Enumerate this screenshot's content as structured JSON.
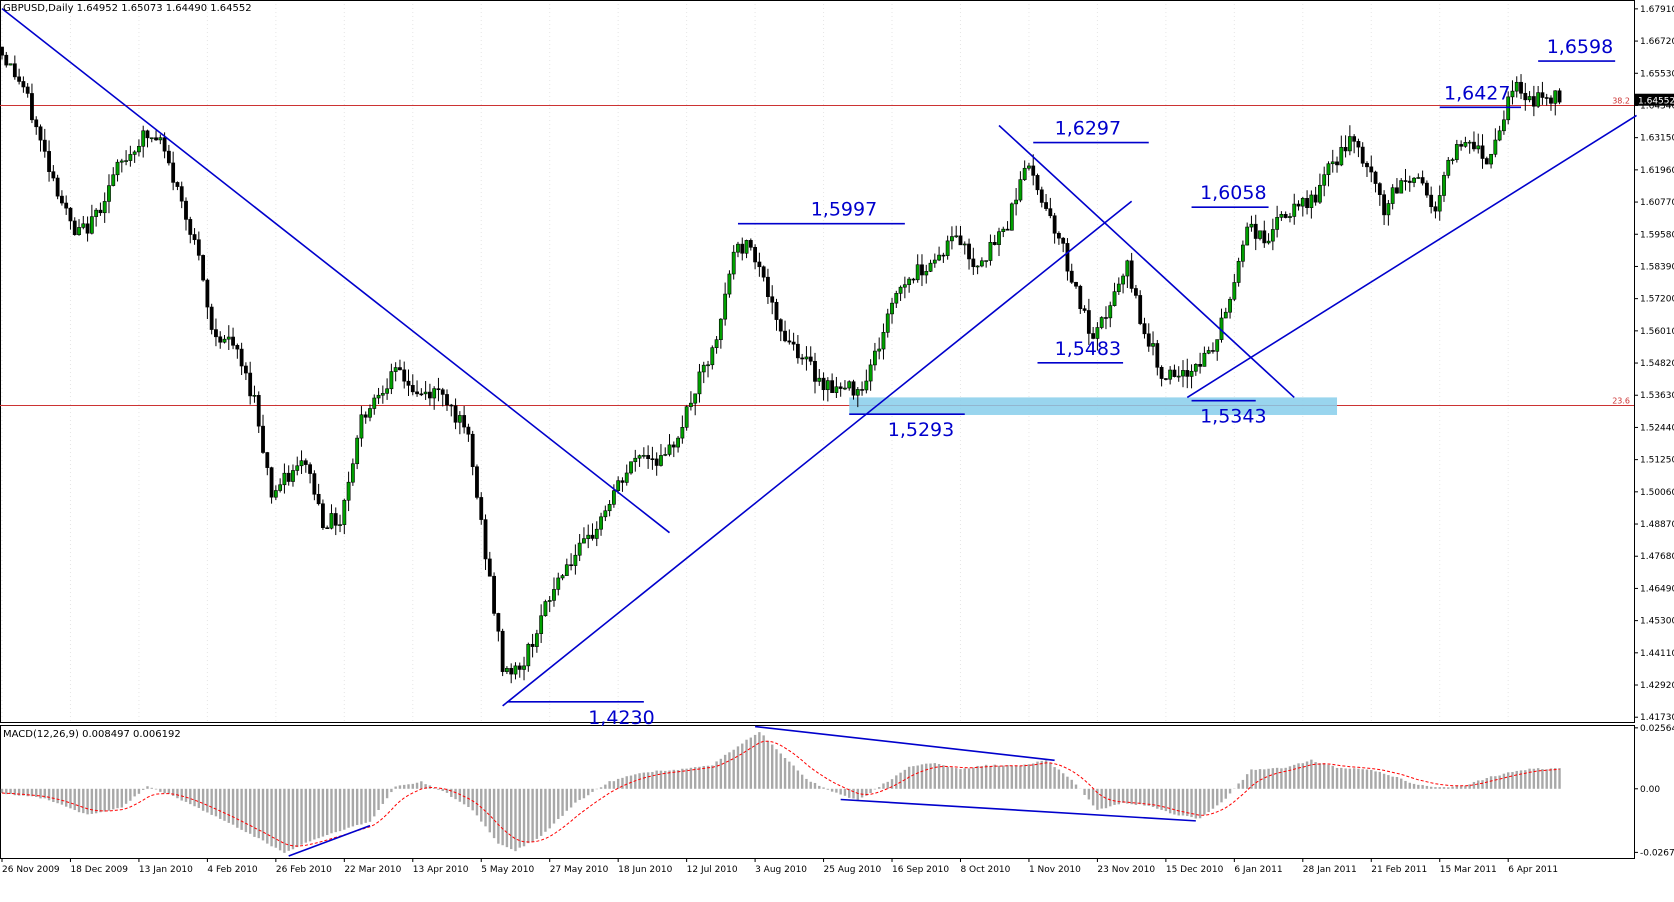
{
  "header": {
    "symbol_line": "GBPUSD,Daily  1.64952 1.65073 1.64490 1.64552",
    "macd_line": "MACD(12,26,9) 0.008497 0.006192"
  },
  "price_axis": {
    "min": 1.4159,
    "max": 1.6809,
    "ticks": [
      "1.67910",
      "1.66720",
      "1.65530",
      "1.64340",
      "1.63150",
      "1.61960",
      "1.60770",
      "1.59580",
      "1.58390",
      "1.57200",
      "1.56010",
      "1.54820",
      "1.53630",
      "1.52440",
      "1.51250",
      "1.50060",
      "1.48870",
      "1.47680",
      "1.46490",
      "1.45300",
      "1.44110",
      "1.42920",
      "1.41730"
    ],
    "current_price": "1.64552",
    "current_value": 1.64552
  },
  "macd_axis": {
    "min": -0.0287,
    "max": 0.026,
    "ticks": [
      "0.025642",
      "0.00",
      "-0.02676"
    ]
  },
  "x_axis": {
    "date_labels": [
      "26 Nov 2009",
      "18 Dec 2009",
      "13 Jan 2010",
      "4 Feb 2010",
      "26 Feb 2010",
      "22 Mar 2010",
      "13 Apr 2010",
      "5 May 2010",
      "27 May 2010",
      "18 Jun 2010",
      "12 Jul 2010",
      "3 Aug 2010",
      "25 Aug 2010",
      "16 Sep 2010",
      "8 Oct 2010",
      "1 Nov 2010",
      "23 Nov 2010",
      "15 Dec 2010",
      "6 Jan 2011",
      "28 Jan 2011",
      "21 Feb 2011",
      "15 Mar 2011",
      "6 Apr 2011"
    ],
    "label_bar_index": [
      0,
      16,
      32,
      48,
      64,
      80,
      96,
      112,
      128,
      144,
      160,
      176,
      192,
      208,
      224,
      240,
      256,
      272,
      288,
      304,
      320,
      336,
      352
    ],
    "total_bars": 365
  },
  "horizontal_levels": [
    {
      "label": "38.2",
      "price": 1.6434,
      "color": "#cc3333"
    },
    {
      "label": "23.6",
      "price": 1.5325,
      "color": "#cc3333"
    }
  ],
  "annotations": [
    {
      "text": "1,6598",
      "price": 1.6598,
      "bar_from": 359,
      "bar_to": 377,
      "label_bar": 361
    },
    {
      "text": "1,6427",
      "price": 1.6427,
      "bar_from": 336,
      "bar_to": 355,
      "label_bar": 337
    },
    {
      "text": "1,6297",
      "price": 1.6297,
      "bar_from": 241,
      "bar_to": 268,
      "label_bar": 246
    },
    {
      "text": "1,6058",
      "price": 1.6058,
      "bar_from": 278,
      "bar_to": 296,
      "label_bar": 280
    },
    {
      "text": "1,5997",
      "price": 1.5997,
      "bar_from": 172,
      "bar_to": 211,
      "label_bar": 189
    },
    {
      "text": "1,5483",
      "price": 1.5483,
      "bar_from": 242,
      "bar_to": 262,
      "label_bar": 246
    },
    {
      "text": "1,5343",
      "price": 1.5343,
      "bar_from": 278,
      "bar_to": 293,
      "label_bar": 280
    },
    {
      "text": "1,5293",
      "price": 1.5293,
      "bar_from": 198,
      "bar_to": 225,
      "label_bar": 207
    },
    {
      "text": "1,4230",
      "price": 1.423,
      "bar_from": 118,
      "bar_to": 150,
      "label_bar": 137
    }
  ],
  "support_zone": {
    "bar_from": 198,
    "bar_to": 312,
    "price_top": 1.5355,
    "price_bottom": 1.529,
    "color": "#87ceeb"
  },
  "trendlines": [
    {
      "bar1": 0,
      "price1": 1.6792,
      "bar2": 156,
      "price2": 1.4855
    },
    {
      "bar1": 117,
      "price1": 1.4215,
      "bar2": 264,
      "price2": 1.608
    },
    {
      "bar1": 233,
      "price1": 1.636,
      "bar2": 302,
      "price2": 1.5355
    },
    {
      "bar1": 277,
      "price1": 1.5355,
      "bar2": 382,
      "price2": 1.6397
    }
  ],
  "macd_trendlines": [
    {
      "bar1": 67,
      "v1": -0.0283,
      "bar2": 86,
      "v2": -0.0155
    },
    {
      "bar1": 176,
      "v1": 0.0262,
      "bar2": 246,
      "v2": 0.012
    },
    {
      "bar1": 196,
      "v1": -0.0045,
      "bar2": 279,
      "v2": -0.0135
    }
  ],
  "chart_data": {
    "type": "candlestick",
    "title": "GBPUSD,Daily",
    "ylim": [
      1.4173,
      1.6791
    ],
    "key_prices": [
      1.423,
      1.5293,
      1.5343,
      1.5483,
      1.5997,
      1.6058,
      1.6297,
      1.6427,
      1.6598
    ],
    "price_anchors": [
      [
        0,
        1.665
      ],
      [
        6,
        1.65
      ],
      [
        10,
        1.63
      ],
      [
        18,
        1.595
      ],
      [
        22,
        1.6
      ],
      [
        28,
        1.62
      ],
      [
        34,
        1.632
      ],
      [
        38,
        1.63
      ],
      [
        42,
        1.612
      ],
      [
        46,
        1.594
      ],
      [
        50,
        1.56
      ],
      [
        55,
        1.555
      ],
      [
        60,
        1.535
      ],
      [
        64,
        1.5
      ],
      [
        68,
        1.506
      ],
      [
        72,
        1.512
      ],
      [
        76,
        1.49
      ],
      [
        80,
        1.49
      ],
      [
        85,
        1.528
      ],
      [
        90,
        1.54
      ],
      [
        94,
        1.545
      ],
      [
        98,
        1.536
      ],
      [
        104,
        1.538
      ],
      [
        110,
        1.52
      ],
      [
        114,
        1.478
      ],
      [
        118,
        1.436
      ],
      [
        122,
        1.434
      ],
      [
        126,
        1.45
      ],
      [
        132,
        1.472
      ],
      [
        138,
        1.482
      ],
      [
        144,
        1.5
      ],
      [
        150,
        1.515
      ],
      [
        156,
        1.512
      ],
      [
        160,
        1.526
      ],
      [
        164,
        1.542
      ],
      [
        168,
        1.555
      ],
      [
        172,
        1.59
      ],
      [
        176,
        1.592
      ],
      [
        178,
        1.585
      ],
      [
        182,
        1.562
      ],
      [
        186,
        1.555
      ],
      [
        192,
        1.542
      ],
      [
        197,
        1.538
      ],
      [
        202,
        1.54
      ],
      [
        206,
        1.555
      ],
      [
        210,
        1.575
      ],
      [
        214,
        1.581
      ],
      [
        220,
        1.588
      ],
      [
        224,
        1.596
      ],
      [
        228,
        1.585
      ],
      [
        232,
        1.59
      ],
      [
        236,
        1.6
      ],
      [
        240,
        1.622
      ],
      [
        244,
        1.61
      ],
      [
        248,
        1.595
      ],
      [
        252,
        1.575
      ],
      [
        256,
        1.555
      ],
      [
        260,
        1.57
      ],
      [
        264,
        1.583
      ],
      [
        268,
        1.56
      ],
      [
        272,
        1.545
      ],
      [
        276,
        1.541
      ],
      [
        280,
        1.548
      ],
      [
        284,
        1.553
      ],
      [
        288,
        1.572
      ],
      [
        292,
        1.6
      ],
      [
        296,
        1.593
      ],
      [
        300,
        1.602
      ],
      [
        304,
        1.605
      ],
      [
        308,
        1.61
      ],
      [
        312,
        1.622
      ],
      [
        316,
        1.63
      ],
      [
        320,
        1.621
      ],
      [
        324,
        1.605
      ],
      [
        328,
        1.615
      ],
      [
        332,
        1.617
      ],
      [
        336,
        1.605
      ],
      [
        340,
        1.626
      ],
      [
        344,
        1.632
      ],
      [
        348,
        1.623
      ],
      [
        352,
        1.64
      ],
      [
        354,
        1.651
      ],
      [
        356,
        1.648
      ],
      [
        358,
        1.646
      ]
    ],
    "macd_anchors": [
      [
        0,
        -0.0018
      ],
      [
        10,
        -0.004
      ],
      [
        20,
        -0.011
      ],
      [
        28,
        -0.008
      ],
      [
        34,
        0.001
      ],
      [
        40,
        -0.003
      ],
      [
        48,
        -0.01
      ],
      [
        58,
        -0.019
      ],
      [
        66,
        -0.027
      ],
      [
        72,
        -0.022
      ],
      [
        80,
        -0.017
      ],
      [
        86,
        -0.014
      ],
      [
        92,
        0.001
      ],
      [
        98,
        0.003
      ],
      [
        104,
        -0.002
      ],
      [
        110,
        -0.009
      ],
      [
        116,
        -0.023
      ],
      [
        120,
        -0.026
      ],
      [
        126,
        -0.02
      ],
      [
        134,
        -0.006
      ],
      [
        142,
        0.003
      ],
      [
        150,
        0.007
      ],
      [
        158,
        0.008
      ],
      [
        166,
        0.01
      ],
      [
        172,
        0.018
      ],
      [
        177,
        0.024
      ],
      [
        182,
        0.015
      ],
      [
        188,
        0.004
      ],
      [
        194,
        -0.001
      ],
      [
        200,
        -0.005
      ],
      [
        206,
        0.002
      ],
      [
        212,
        0.009
      ],
      [
        218,
        0.011
      ],
      [
        224,
        0.008
      ],
      [
        230,
        0.01
      ],
      [
        238,
        0.0095
      ],
      [
        244,
        0.012
      ],
      [
        250,
        0.004
      ],
      [
        256,
        -0.009
      ],
      [
        262,
        -0.006
      ],
      [
        268,
        -0.007
      ],
      [
        274,
        -0.011
      ],
      [
        280,
        -0.0125
      ],
      [
        286,
        -0.004
      ],
      [
        292,
        0.008
      ],
      [
        300,
        0.009
      ],
      [
        306,
        0.012
      ],
      [
        312,
        0.009
      ],
      [
        318,
        0.0085
      ],
      [
        324,
        0.006
      ],
      [
        330,
        0.002
      ],
      [
        336,
        0.0005
      ],
      [
        342,
        0.0015
      ],
      [
        348,
        0.005
      ],
      [
        354,
        0.0075
      ],
      [
        358,
        0.0085
      ]
    ]
  }
}
